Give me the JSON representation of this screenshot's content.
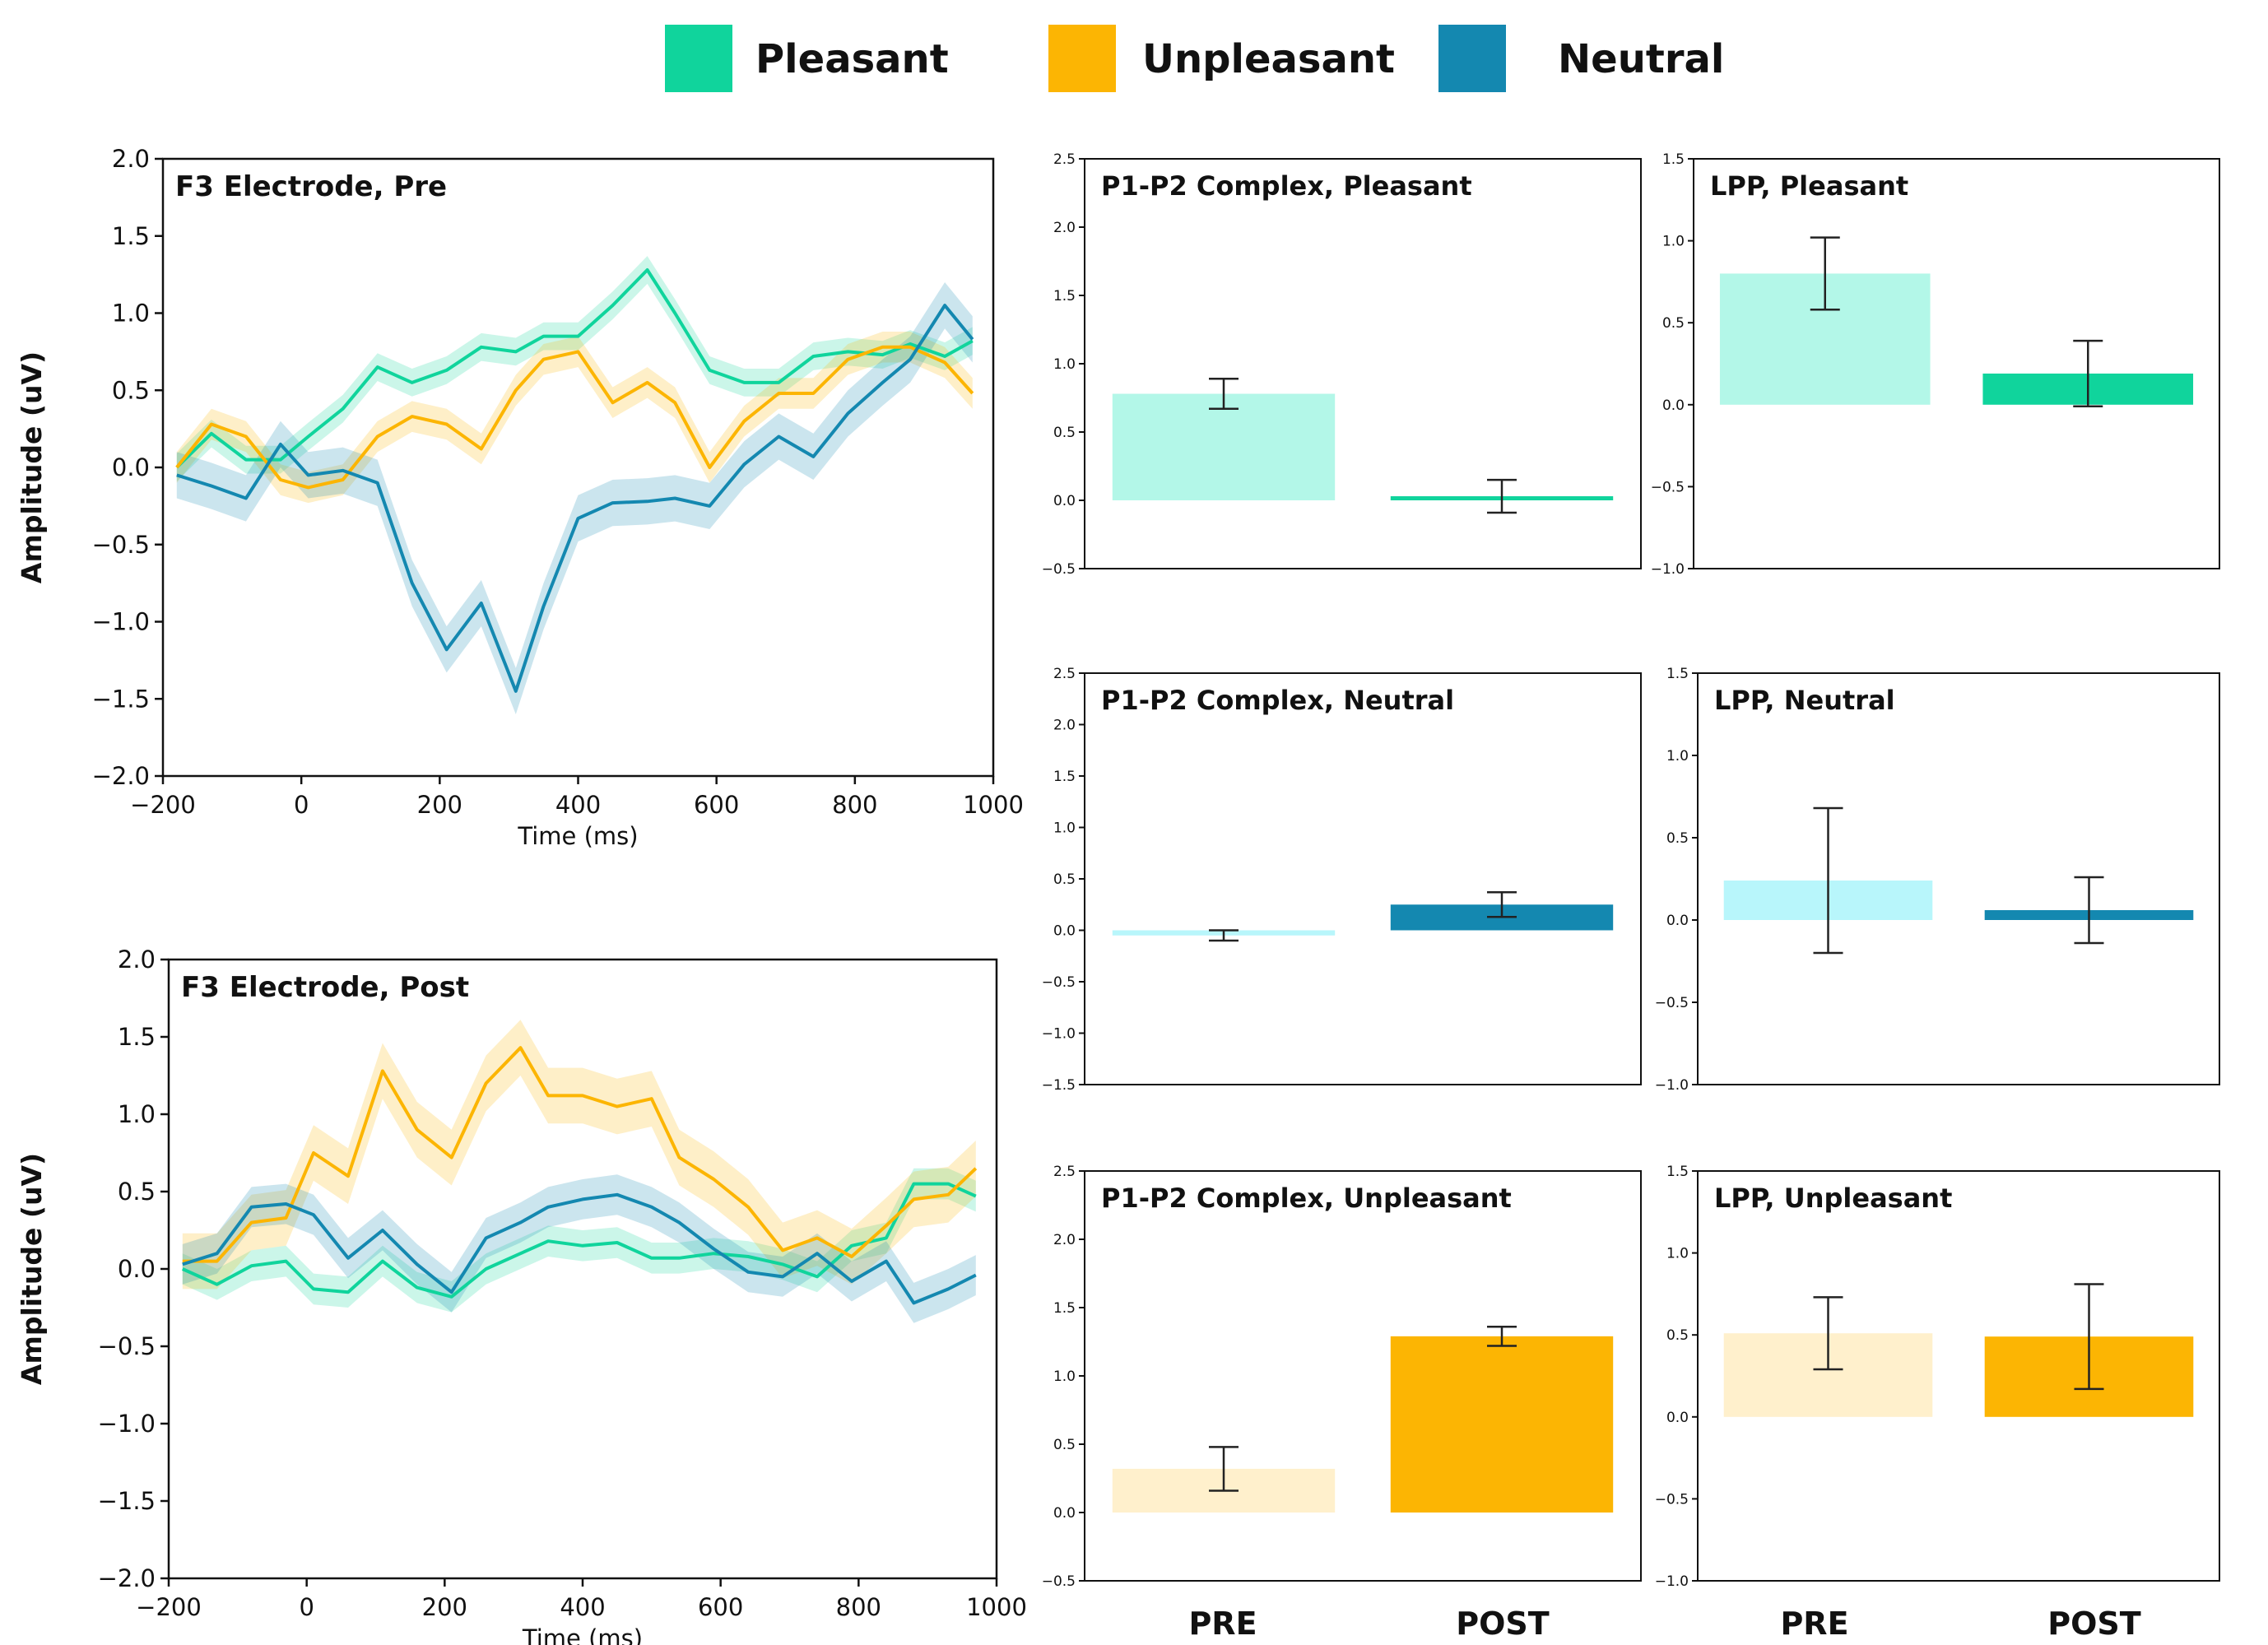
{
  "colors": {
    "pleasant": "#10d49c",
    "pleasant_pre": "#b3f7e8",
    "unpleasant": "#fcb503",
    "unpleasant_pre": "#fff0cc",
    "neutral": "#1488b0",
    "neutral_pre": "#b8f6fb",
    "err": "#222222"
  },
  "legend": [
    {
      "label": "Pleasant",
      "key": "pleasant"
    },
    {
      "label": "Unpleasant",
      "key": "unpleasant"
    },
    {
      "label": "Neutral",
      "key": "neutral"
    }
  ],
  "bar_categories": [
    "PRE",
    "POST"
  ],
  "chart_data": [
    {
      "type": "line",
      "id": "f3-pre",
      "title": "F3 Electrode, Pre",
      "xlabel": "Time (ms)",
      "ylabel": "Amplitude (uV)",
      "xlim": [
        -200,
        1000
      ],
      "ylim": [
        -2.0,
        2.0
      ],
      "xticks": [
        -200,
        0,
        200,
        400,
        600,
        800,
        1000
      ],
      "xtick_labels": [
        "−200",
        "0",
        "200",
        "400",
        "600",
        "800",
        "1000"
      ],
      "yticks": [
        -2.0,
        -1.5,
        -1.0,
        -0.5,
        0.0,
        0.5,
        1.0,
        1.5,
        2.0
      ],
      "ytick_labels": [
        "−2.0",
        "−1.5",
        "−1.0",
        "−0.5",
        "0.0",
        "0.5",
        "1.0",
        "1.5",
        "2.0"
      ],
      "x": [
        -180,
        -130,
        -80,
        -30,
        10,
        60,
        110,
        160,
        210,
        260,
        310,
        350,
        400,
        450,
        500,
        540,
        590,
        640,
        690,
        740,
        790,
        840,
        880,
        930,
        970
      ],
      "series": [
        {
          "name": "Pleasant",
          "key": "pleasant",
          "band": 0.09,
          "values": [
            0.0,
            0.22,
            0.05,
            0.05,
            0.2,
            0.38,
            0.65,
            0.55,
            0.63,
            0.78,
            0.75,
            0.85,
            0.85,
            1.05,
            1.28,
            1.0,
            0.63,
            0.55,
            0.55,
            0.72,
            0.75,
            0.73,
            0.8,
            0.72,
            0.82
          ]
        },
        {
          "name": "Unpleasant",
          "key": "unpleasant",
          "band": 0.1,
          "values": [
            0.0,
            0.28,
            0.2,
            -0.08,
            -0.13,
            -0.08,
            0.2,
            0.33,
            0.28,
            0.12,
            0.5,
            0.7,
            0.75,
            0.42,
            0.55,
            0.42,
            0.0,
            0.3,
            0.48,
            0.48,
            0.7,
            0.78,
            0.78,
            0.68,
            0.48
          ]
        },
        {
          "name": "Neutral",
          "key": "neutral",
          "band": 0.15,
          "values": [
            -0.05,
            -0.12,
            -0.2,
            0.15,
            -0.05,
            -0.02,
            -0.1,
            -0.75,
            -1.18,
            -0.88,
            -1.45,
            -0.9,
            -0.33,
            -0.23,
            -0.22,
            -0.2,
            -0.25,
            0.02,
            0.2,
            0.07,
            0.35,
            0.55,
            0.7,
            1.05,
            0.83
          ]
        }
      ]
    },
    {
      "type": "line",
      "id": "f3-post",
      "title": "F3 Electrode, Post",
      "xlabel": "Time (ms)",
      "ylabel": "Amplitude (uV)",
      "xlim": [
        -200,
        1000
      ],
      "ylim": [
        -2.0,
        2.0
      ],
      "xticks": [
        -200,
        0,
        200,
        400,
        600,
        800,
        1000
      ],
      "xtick_labels": [
        "−200",
        "0",
        "200",
        "400",
        "600",
        "800",
        "1000"
      ],
      "yticks": [
        -2.0,
        -1.5,
        -1.0,
        -0.5,
        0.0,
        0.5,
        1.0,
        1.5,
        2.0
      ],
      "ytick_labels": [
        "−2.0",
        "−1.5",
        "−1.0",
        "−0.5",
        "0.0",
        "0.5",
        "1.0",
        "1.5",
        "2.0"
      ],
      "x": [
        -180,
        -130,
        -80,
        -30,
        10,
        60,
        110,
        160,
        210,
        260,
        310,
        350,
        400,
        450,
        500,
        540,
        590,
        640,
        690,
        740,
        790,
        840,
        880,
        930,
        970
      ],
      "series": [
        {
          "name": "Pleasant",
          "key": "pleasant",
          "band": 0.1,
          "values": [
            0.0,
            -0.1,
            0.02,
            0.05,
            -0.13,
            -0.15,
            0.05,
            -0.12,
            -0.18,
            0.0,
            0.1,
            0.18,
            0.15,
            0.17,
            0.07,
            0.07,
            0.1,
            0.08,
            0.03,
            -0.05,
            0.15,
            0.2,
            0.55,
            0.55,
            0.47
          ]
        },
        {
          "name": "Unpleasant",
          "key": "unpleasant",
          "band": 0.18,
          "values": [
            0.05,
            0.05,
            0.3,
            0.33,
            0.75,
            0.6,
            1.28,
            0.9,
            0.72,
            1.2,
            1.43,
            1.12,
            1.12,
            1.05,
            1.1,
            0.72,
            0.58,
            0.4,
            0.12,
            0.2,
            0.08,
            0.28,
            0.45,
            0.48,
            0.65
          ]
        },
        {
          "name": "Neutral",
          "key": "neutral",
          "band": 0.13,
          "values": [
            0.03,
            0.1,
            0.4,
            0.42,
            0.35,
            0.07,
            0.25,
            0.03,
            -0.15,
            0.2,
            0.3,
            0.4,
            0.45,
            0.48,
            0.4,
            0.3,
            0.13,
            -0.02,
            -0.05,
            0.1,
            -0.08,
            0.05,
            -0.22,
            -0.13,
            -0.04
          ]
        }
      ]
    },
    {
      "type": "bar",
      "id": "p1p2-pleasant",
      "title": "P1-P2 Complex, Pleasant",
      "key": "pleasant",
      "categories": [
        "PRE",
        "POST"
      ],
      "values": [
        0.78,
        0.03
      ],
      "errors": [
        0.11,
        0.12
      ],
      "ylim": [
        -0.5,
        2.5
      ],
      "yticks": [
        -0.5,
        0.0,
        0.5,
        1.0,
        1.5,
        2.0,
        2.5
      ],
      "ytick_labels": [
        "−0.5",
        "0.0",
        "0.5",
        "1.0",
        "1.5",
        "2.0",
        "2.5"
      ]
    },
    {
      "type": "bar",
      "id": "lpp-pleasant",
      "title": "LPP, Pleasant",
      "key": "pleasant",
      "categories": [
        "PRE",
        "POST"
      ],
      "values": [
        0.8,
        0.19
      ],
      "errors": [
        0.22,
        0.2
      ],
      "ylim": [
        -1.0,
        1.5
      ],
      "yticks": [
        -1.0,
        -0.5,
        0.0,
        0.5,
        1.0,
        1.5
      ],
      "ytick_labels": [
        "−1.0",
        "−0.5",
        "0.0",
        "0.5",
        "1.0",
        "1.5"
      ]
    },
    {
      "type": "bar",
      "id": "p1p2-neutral",
      "title": "P1-P2 Complex, Neutral",
      "key": "neutral",
      "categories": [
        "PRE",
        "POST"
      ],
      "values": [
        -0.05,
        0.25
      ],
      "errors": [
        0.05,
        0.12
      ],
      "ylim": [
        -1.5,
        2.5
      ],
      "yticks": [
        -1.5,
        -1.0,
        -0.5,
        0.0,
        0.5,
        1.0,
        1.5,
        2.0,
        2.5
      ],
      "ytick_labels": [
        "−1.5",
        "−1.0",
        "−0.5",
        "0.0",
        "0.5",
        "1.0",
        "1.5",
        "2.0",
        "2.5"
      ]
    },
    {
      "type": "bar",
      "id": "lpp-neutral",
      "title": "LPP, Neutral",
      "key": "neutral",
      "categories": [
        "PRE",
        "POST"
      ],
      "values": [
        0.24,
        0.06
      ],
      "errors": [
        0.44,
        0.2
      ],
      "ylim": [
        -1.0,
        1.5
      ],
      "yticks": [
        -1.0,
        -0.5,
        0.0,
        0.5,
        1.0,
        1.5
      ],
      "ytick_labels": [
        "−1.0",
        "−0.5",
        "0.0",
        "0.5",
        "1.0",
        "1.5"
      ]
    },
    {
      "type": "bar",
      "id": "p1p2-unpleasant",
      "title": "P1-P2 Complex, Unpleasant",
      "key": "unpleasant",
      "categories": [
        "PRE",
        "POST"
      ],
      "values": [
        0.32,
        1.29
      ],
      "errors": [
        0.16,
        0.07
      ],
      "ylim": [
        -0.5,
        2.5
      ],
      "yticks": [
        -0.5,
        0.0,
        0.5,
        1.0,
        1.5,
        2.0,
        2.5
      ],
      "ytick_labels": [
        "−0.5",
        "0.0",
        "0.5",
        "1.0",
        "1.5",
        "2.0",
        "2.5"
      ]
    },
    {
      "type": "bar",
      "id": "lpp-unpleasant",
      "title": "LPP, Unpleasant",
      "key": "unpleasant",
      "categories": [
        "PRE",
        "POST"
      ],
      "values": [
        0.51,
        0.49
      ],
      "errors": [
        0.22,
        0.32
      ],
      "ylim": [
        -1.0,
        1.5
      ],
      "yticks": [
        -1.0,
        -0.5,
        0.0,
        0.5,
        1.0,
        1.5
      ],
      "ytick_labels": [
        "−1.0",
        "−0.5",
        "0.0",
        "0.5",
        "1.0",
        "1.5"
      ]
    }
  ]
}
